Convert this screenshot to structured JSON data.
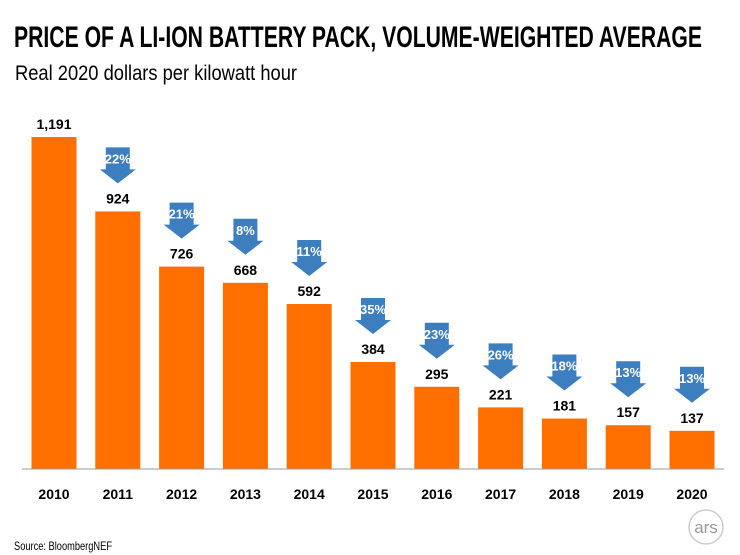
{
  "chart_data": {
    "type": "bar",
    "title": "PRICE OF A LI-ION BATTERY PACK, VOLUME-WEIGHTED AVERAGE",
    "subtitle": "Real 2020 dollars per kilowatt hour",
    "categories": [
      "2010",
      "2011",
      "2012",
      "2013",
      "2014",
      "2015",
      "2016",
      "2017",
      "2018",
      "2019",
      "2020"
    ],
    "values": [
      1191,
      924,
      726,
      668,
      592,
      384,
      295,
      221,
      181,
      157,
      137
    ],
    "value_labels": [
      "1,191",
      "924",
      "726",
      "668",
      "592",
      "384",
      "295",
      "221",
      "181",
      "157",
      "137"
    ],
    "yoy_decline_labels": [
      null,
      "22%",
      "21%",
      "8%",
      "11%",
      "35%",
      "23%",
      "26%",
      "18%",
      "13%",
      "13%"
    ],
    "xlabel": "",
    "ylabel": "",
    "ylim": [
      0,
      1191
    ],
    "grid": false,
    "legend": "none",
    "source": "Source:  BloombergNEF",
    "colors": {
      "bar": "#ff6f00",
      "arrow": "#3d7ebf",
      "axis": "#999999"
    }
  },
  "logo": "ars"
}
